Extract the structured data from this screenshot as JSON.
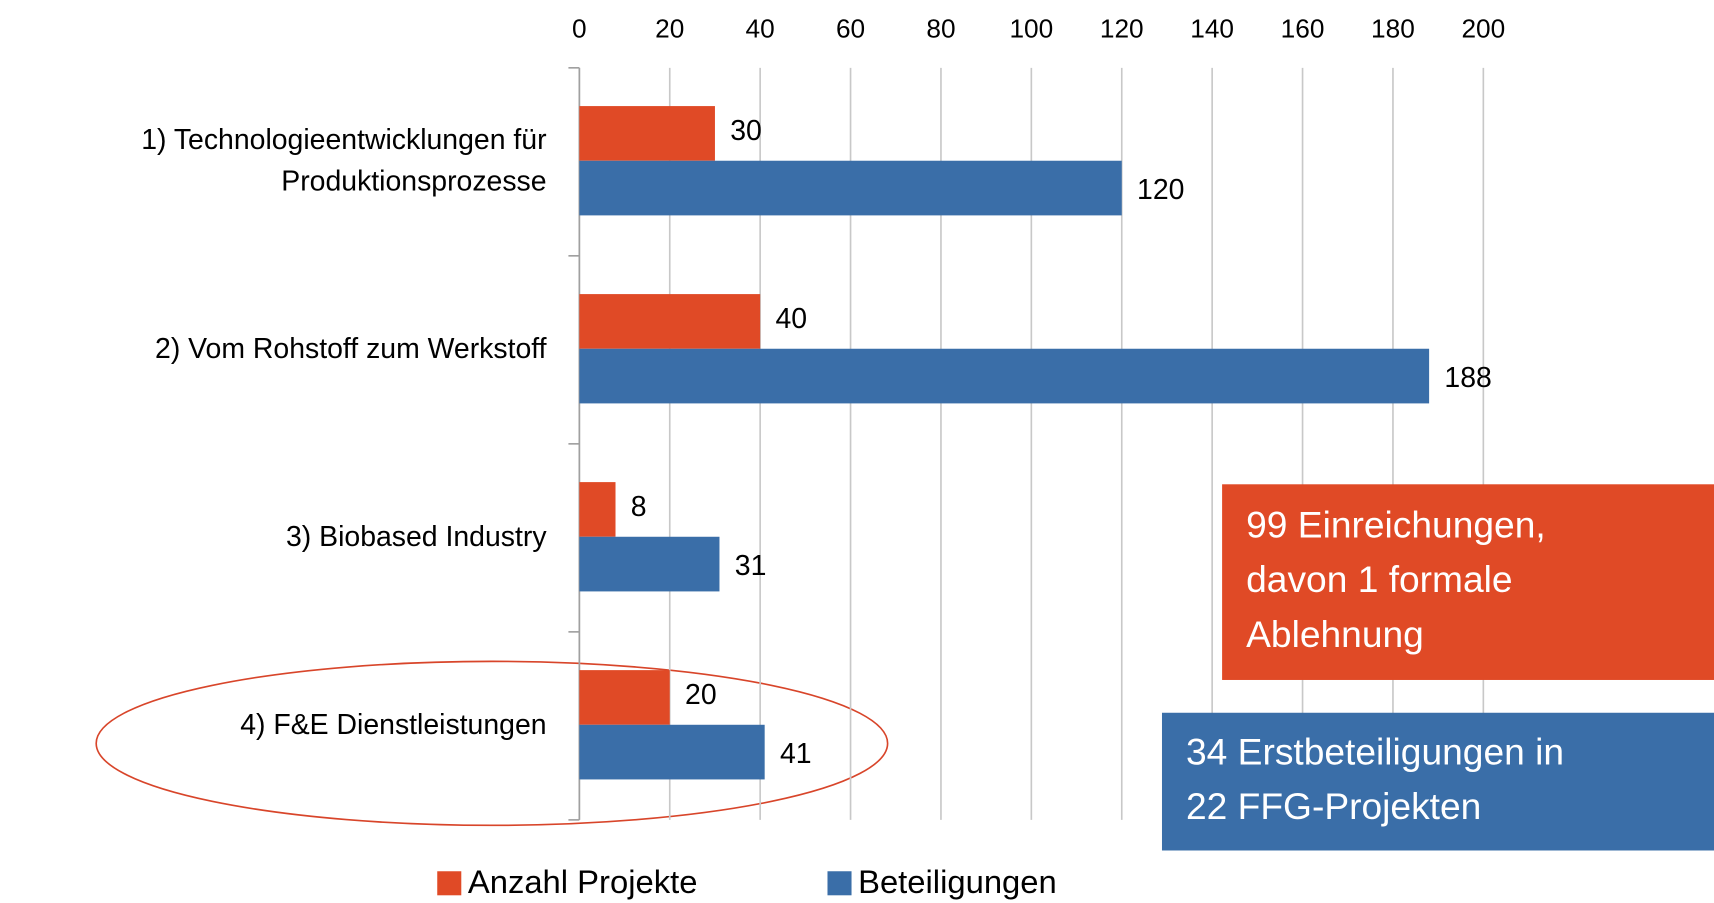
{
  "chart_data": {
    "type": "bar",
    "orientation": "horizontal",
    "categories": [
      "1) Technologieentwicklungen für\nProduktionsprozesse",
      "2) Vom Rohstoff zum Werkstoff",
      "3) Biobased Industry",
      "4) F&E Dienstleistungen"
    ],
    "series": [
      {
        "name": "Anzahl Projekte",
        "color": "#e04a26",
        "values": [
          30,
          40,
          8,
          20
        ]
      },
      {
        "name": "Beteiligungen",
        "color": "#3a6ea8",
        "values": [
          120,
          188,
          31,
          41
        ]
      }
    ],
    "xlim": [
      0,
      200
    ],
    "xticks": [
      0,
      20,
      40,
      60,
      80,
      100,
      120,
      140,
      160,
      180,
      200
    ],
    "grid": true,
    "legend": "bottom",
    "annotations": [
      {
        "text": "99 Einreichungen,\ndavon 1 formale\nAblehnung",
        "color": "#e04a26"
      },
      {
        "text": "34 Erstbeteiligungen in\n22 FFG-Projekten",
        "color": "#3a6ea8"
      }
    ]
  }
}
